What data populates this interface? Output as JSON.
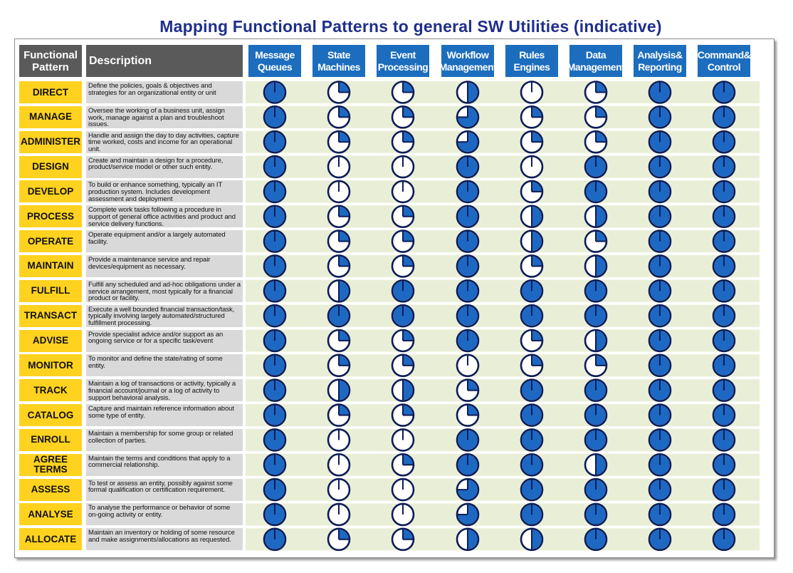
{
  "title": "Mapping Functional Patterns to general SW Utilities  (indicative)",
  "headers": {
    "pattern": "Functional\nPattern",
    "description": "Description",
    "columns": [
      "Message\nQueues",
      "State\nMachines",
      "Event\nProcessing",
      "Workflow\nManagement",
      "Rules\nEngines",
      "Data\nManagement",
      "Analysis&\nReporting",
      "Command&\nControl"
    ]
  },
  "colors": {
    "header_dark": "#5a5a5a",
    "header_blue": "#1c6dbd",
    "pattern_yellow": "#ffd21f",
    "row_green": "#e8efd6",
    "ball_blue": "#1d68c2",
    "ball_outline": "#0d1c57"
  },
  "legend_note": "Harvey balls: fill fraction 0 = empty, 0.25, 0.5, 0.75, 1 = full",
  "rows": [
    {
      "pattern": "DIRECT",
      "description": "Define the policies, goals & objectives and strategies for an organizational entity or unit",
      "fills": [
        1,
        0.25,
        0.25,
        0.5,
        0,
        0.25,
        1,
        1
      ]
    },
    {
      "pattern": "MANAGE",
      "description": "Oversee the working of a business unit, assign work, manage against a plan and troubleshoot issues.",
      "fills": [
        1,
        0.25,
        0.25,
        0.75,
        0.25,
        0.25,
        1,
        1
      ]
    },
    {
      "pattern": "ADMINISTER",
      "description": "Handle and assign the day to day activities, capture time worked, costs and income for an operational unit.",
      "fills": [
        1,
        0.25,
        0.25,
        0.75,
        0.25,
        0.25,
        1,
        1
      ]
    },
    {
      "pattern": "DESIGN",
      "description": "Create and maintain a design for a procedure, product/service model or other such entity.",
      "fills": [
        1,
        0,
        0,
        1,
        0,
        1,
        1,
        1
      ]
    },
    {
      "pattern": "DEVELOP",
      "description": "To build or enhance something, typically an IT production system. Includes development assessment and deployment",
      "fills": [
        1,
        0,
        0,
        1,
        0.25,
        1,
        1,
        1
      ]
    },
    {
      "pattern": "PROCESS",
      "description": "Complete work tasks following a procedure in support of general office activities and product and service delivery functions.",
      "fills": [
        1,
        0.25,
        0.25,
        1,
        0.5,
        0.5,
        1,
        1
      ]
    },
    {
      "pattern": "OPERATE",
      "description": "Operate equipment and/or a largely automated facility.",
      "fills": [
        1,
        0.25,
        0.25,
        1,
        0.5,
        0.25,
        1,
        1
      ]
    },
    {
      "pattern": "MAINTAIN",
      "description": "Provide a maintenance service and repair devices/equipment as necessary.",
      "fills": [
        1,
        0.25,
        0.25,
        1,
        0.25,
        0.5,
        1,
        1
      ]
    },
    {
      "pattern": "FULFILL",
      "description": "Fulfill any scheduled and ad-hoc obligations under a service arrangement, most typically for a financial product or facility.",
      "fills": [
        1,
        0.5,
        1,
        1,
        1,
        1,
        1,
        1
      ]
    },
    {
      "pattern": "TRANSACT",
      "description": "Execute a well bounded financial transaction/task, typically involving largely automated/structured fulfillment processing.",
      "fills": [
        1,
        1,
        1,
        1,
        1,
        1,
        1,
        1
      ]
    },
    {
      "pattern": "ADVISE",
      "description": "Provide specialist advice and/or support as an ongoing service or for a specific task/event",
      "fills": [
        1,
        0.25,
        0.25,
        1,
        0.25,
        0.5,
        1,
        1
      ]
    },
    {
      "pattern": "MONITOR",
      "description": "To monitor and define the state/rating of some entity.",
      "fills": [
        1,
        0.25,
        0.25,
        0,
        0.25,
        0.25,
        1,
        1
      ]
    },
    {
      "pattern": "TRACK",
      "description": "Maintain a log of transactions or activity, typically a financial account/journal or a log of activity to support behavioral analysis.",
      "fills": [
        1,
        0.5,
        0.5,
        0.25,
        1,
        1,
        1,
        1
      ]
    },
    {
      "pattern": "CATALOG",
      "description": "Capture and maintain reference information about some type of entity.",
      "fills": [
        1,
        0.25,
        0.25,
        0.25,
        1,
        1,
        1,
        1
      ]
    },
    {
      "pattern": "ENROLL",
      "description": "Maintain a membership for some group or related collection of parties.",
      "fills": [
        1,
        0,
        0,
        1,
        1,
        1,
        1,
        1
      ]
    },
    {
      "pattern": "AGREE\nTERMS",
      "description": "Maintain the terms and conditions that apply to a commercial relationship.",
      "fills": [
        1,
        0,
        0.25,
        1,
        1,
        0.5,
        1,
        1
      ]
    },
    {
      "pattern": "ASSESS",
      "description": "To test or assess an entity, possibly against some formal qualification or certification requirement.",
      "fills": [
        1,
        0,
        0,
        0.75,
        1,
        1,
        1,
        1
      ]
    },
    {
      "pattern": "ANALYSE",
      "description": "To analyse the performance or behavior of some on-going activity or entity.",
      "fills": [
        1,
        0,
        0,
        0.75,
        1,
        1,
        1,
        1
      ]
    },
    {
      "pattern": "ALLOCATE",
      "description": "Maintain an inventory or holding of some resource and make assignments/allocations as requested.",
      "fills": [
        1,
        0.25,
        0.25,
        0.5,
        0.5,
        1,
        1,
        1
      ]
    }
  ]
}
